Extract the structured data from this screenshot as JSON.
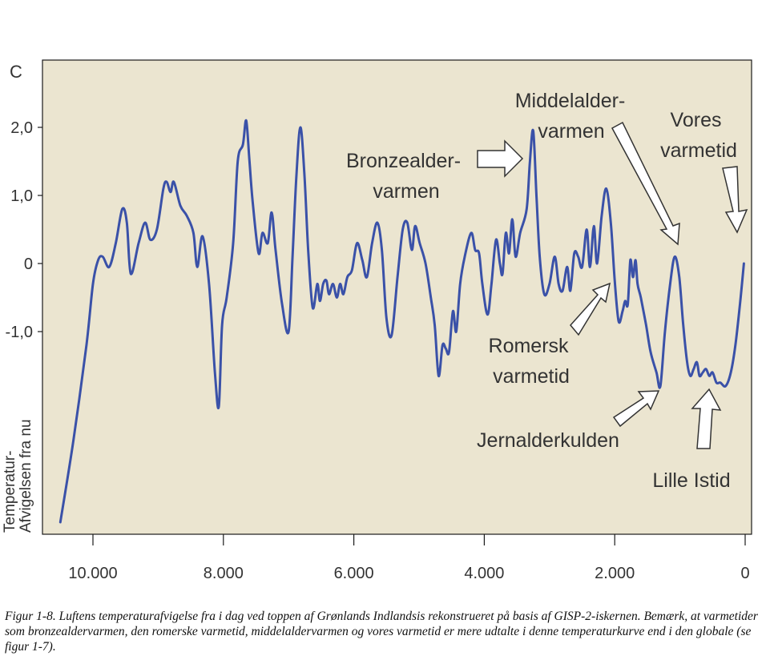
{
  "chart_data": {
    "type": "line",
    "title": "",
    "unit_label": "C",
    "ylabel": "Temperatur-\nAfvigelsen fra nu",
    "xlabel": "",
    "xlim": [
      10500,
      0
    ],
    "ylim": [
      -4.1,
      2.95
    ],
    "x_ticks": [
      {
        "value": 10000,
        "label": "10.000"
      },
      {
        "value": 8000,
        "label": "8.000"
      },
      {
        "value": 6000,
        "label": "6.000"
      },
      {
        "value": 4000,
        "label": "4.000"
      },
      {
        "value": 2000,
        "label": "2.000"
      },
      {
        "value": 0,
        "label": "0"
      }
    ],
    "y_ticks": [
      {
        "value": 2,
        "label": "2,0"
      },
      {
        "value": 1,
        "label": "1,0"
      },
      {
        "value": 0,
        "label": "0"
      },
      {
        "value": -1,
        "label": "-1,0"
      }
    ],
    "series": [
      {
        "name": "",
        "color": "#3a51a8",
        "points": [
          [
            10500,
            -3.8
          ],
          [
            10300,
            -2.6
          ],
          [
            10100,
            -1.2
          ],
          [
            10000,
            -0.3
          ],
          [
            9920,
            0.05
          ],
          [
            9850,
            0.1
          ],
          [
            9750,
            -0.05
          ],
          [
            9650,
            0.3
          ],
          [
            9550,
            0.8
          ],
          [
            9480,
            0.6
          ],
          [
            9420,
            -0.15
          ],
          [
            9300,
            0.3
          ],
          [
            9200,
            0.6
          ],
          [
            9120,
            0.35
          ],
          [
            9020,
            0.5
          ],
          [
            8920,
            1.1
          ],
          [
            8870,
            1.2
          ],
          [
            8810,
            1.05
          ],
          [
            8760,
            1.2
          ],
          [
            8660,
            0.85
          ],
          [
            8560,
            0.7
          ],
          [
            8460,
            0.45
          ],
          [
            8400,
            -0.05
          ],
          [
            8320,
            0.4
          ],
          [
            8220,
            -0.3
          ],
          [
            8130,
            -1.6
          ],
          [
            8070,
            -2.1
          ],
          [
            8020,
            -0.9
          ],
          [
            7950,
            -0.5
          ],
          [
            7850,
            0.3
          ],
          [
            7780,
            1.5
          ],
          [
            7700,
            1.75
          ],
          [
            7650,
            2.1
          ],
          [
            7600,
            1.5
          ],
          [
            7550,
            0.9
          ],
          [
            7460,
            0.15
          ],
          [
            7400,
            0.45
          ],
          [
            7320,
            0.3
          ],
          [
            7260,
            0.75
          ],
          [
            7200,
            0.2
          ],
          [
            7100,
            -0.6
          ],
          [
            7000,
            -1.0
          ],
          [
            6940,
            0.1
          ],
          [
            6880,
            1.3
          ],
          [
            6820,
            2.0
          ],
          [
            6760,
            1.35
          ],
          [
            6700,
            0.2
          ],
          [
            6630,
            -0.65
          ],
          [
            6560,
            -0.3
          ],
          [
            6520,
            -0.55
          ],
          [
            6470,
            -0.3
          ],
          [
            6420,
            -0.25
          ],
          [
            6380,
            -0.45
          ],
          [
            6320,
            -0.3
          ],
          [
            6260,
            -0.5
          ],
          [
            6210,
            -0.3
          ],
          [
            6160,
            -0.45
          ],
          [
            6100,
            -0.2
          ],
          [
            6030,
            -0.1
          ],
          [
            5950,
            0.3
          ],
          [
            5870,
            0.05
          ],
          [
            5800,
            -0.2
          ],
          [
            5720,
            0.3
          ],
          [
            5640,
            0.6
          ],
          [
            5570,
            0.2
          ],
          [
            5500,
            -0.8
          ],
          [
            5420,
            -1.05
          ],
          [
            5330,
            -0.2
          ],
          [
            5250,
            0.5
          ],
          [
            5180,
            0.6
          ],
          [
            5110,
            0.2
          ],
          [
            5060,
            0.55
          ],
          [
            4990,
            0.3
          ],
          [
            4900,
            0.0
          ],
          [
            4820,
            -0.5
          ],
          [
            4760,
            -0.9
          ],
          [
            4700,
            -1.65
          ],
          [
            4640,
            -1.2
          ],
          [
            4590,
            -1.25
          ],
          [
            4540,
            -1.3
          ],
          [
            4480,
            -0.7
          ],
          [
            4430,
            -1.0
          ],
          [
            4370,
            -0.3
          ],
          [
            4300,
            0.1
          ],
          [
            4200,
            0.45
          ],
          [
            4140,
            0.2
          ],
          [
            4080,
            0.15
          ],
          [
            4030,
            -0.3
          ],
          [
            3950,
            -0.75
          ],
          [
            3890,
            -0.3
          ],
          [
            3820,
            0.35
          ],
          [
            3760,
            0.0
          ],
          [
            3720,
            -0.15
          ],
          [
            3670,
            0.45
          ],
          [
            3620,
            0.15
          ],
          [
            3570,
            0.65
          ],
          [
            3520,
            0.1
          ],
          [
            3450,
            0.45
          ],
          [
            3350,
            0.8
          ],
          [
            3300,
            1.5
          ],
          [
            3250,
            1.95
          ],
          [
            3200,
            1.0
          ],
          [
            3150,
            0.1
          ],
          [
            3080,
            -0.45
          ],
          [
            3000,
            -0.3
          ],
          [
            2920,
            0.1
          ],
          [
            2860,
            -0.3
          ],
          [
            2800,
            -0.4
          ],
          [
            2730,
            -0.05
          ],
          [
            2680,
            -0.4
          ],
          [
            2620,
            0.15
          ],
          [
            2560,
            0.1
          ],
          [
            2500,
            -0.05
          ],
          [
            2430,
            0.5
          ],
          [
            2380,
            -0.05
          ],
          [
            2320,
            0.55
          ],
          [
            2270,
            0.0
          ],
          [
            2200,
            0.7
          ],
          [
            2130,
            1.1
          ],
          [
            2060,
            0.6
          ],
          [
            2000,
            -0.25
          ],
          [
            1940,
            -0.85
          ],
          [
            1880,
            -0.7
          ],
          [
            1840,
            -0.55
          ],
          [
            1800,
            -0.6
          ],
          [
            1760,
            0.05
          ],
          [
            1720,
            -0.2
          ],
          [
            1680,
            0.05
          ],
          [
            1650,
            -0.3
          ],
          [
            1600,
            -0.5
          ],
          [
            1520,
            -0.9
          ],
          [
            1450,
            -1.3
          ],
          [
            1360,
            -1.6
          ],
          [
            1300,
            -1.8
          ],
          [
            1230,
            -1.0
          ],
          [
            1150,
            -0.3
          ],
          [
            1080,
            0.1
          ],
          [
            1010,
            -0.2
          ],
          [
            950,
            -0.9
          ],
          [
            890,
            -1.45
          ],
          [
            840,
            -1.65
          ],
          [
            790,
            -1.55
          ],
          [
            740,
            -1.45
          ],
          [
            700,
            -1.65
          ],
          [
            650,
            -1.6
          ],
          [
            600,
            -1.55
          ],
          [
            550,
            -1.65
          ],
          [
            500,
            -1.6
          ],
          [
            440,
            -1.75
          ],
          [
            380,
            -1.75
          ],
          [
            300,
            -1.8
          ],
          [
            220,
            -1.6
          ],
          [
            150,
            -1.2
          ],
          [
            80,
            -0.6
          ],
          [
            20,
            0.0
          ]
        ]
      }
    ],
    "annotations": [
      {
        "name": "bronzealder",
        "text": [
          "Bronzealder-",
          "varmen"
        ]
      },
      {
        "name": "middelalder",
        "text": [
          "Middelalder-",
          "varmen"
        ]
      },
      {
        "name": "vores",
        "text": [
          "Vores",
          "varmetid"
        ]
      },
      {
        "name": "romersk",
        "text": [
          "Romersk",
          "varmetid"
        ]
      },
      {
        "name": "jernalder",
        "text": [
          "Jernalderkulden"
        ]
      },
      {
        "name": "lille-istid",
        "text": [
          "Lille Istid"
        ]
      }
    ]
  },
  "caption": "Figur 1-8. Luftens temperaturafvigelse fra i dag ved toppen af Grønlands Indlandsis rekonstrueret på basis af GISP-2-iskernen. Bemærk, at varmetider som bronzealdervarmen, den romerske varmetid, middelaldervarmen og vores varmetid er mere udtalte i denne temperaturkurve end i den globale (se figur 1-7).",
  "colors": {
    "plot_background": "#ebe5d0",
    "axis": "#1a1a1a",
    "line": "#3a51a8",
    "text": "#333333"
  }
}
